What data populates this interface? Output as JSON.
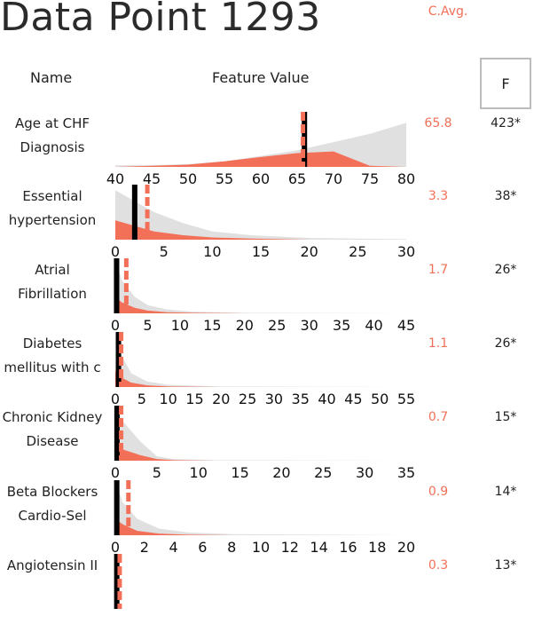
{
  "title": "Data Point 1293",
  "headers": {
    "name": "Name",
    "feature_value": "Feature Value",
    "cavg": "C.Avg.",
    "f": "F"
  },
  "colors": {
    "grey": "#e0e0e0",
    "accent": "#f37058",
    "marker": "#000000"
  },
  "chart_data": {
    "type": "area",
    "rows": [
      {
        "name_lines": [
          "Age at CHF",
          "Diagnosis"
        ],
        "cavg": "65.8",
        "f": "423*",
        "xlim": [
          40,
          80
        ],
        "ticks": [
          40,
          45,
          50,
          55,
          60,
          65,
          70,
          75,
          80
        ],
        "value": 66,
        "avg": 65.8,
        "grey_x": [
          40,
          45,
          50,
          55,
          60,
          65,
          70,
          75,
          80
        ],
        "grey_y": [
          0.03,
          0.03,
          0.05,
          0.1,
          0.2,
          0.3,
          0.45,
          0.6,
          0.8
        ],
        "red_x": [
          40,
          45,
          50,
          55,
          60,
          65,
          70,
          75,
          80
        ],
        "red_y": [
          0.0,
          0.02,
          0.04,
          0.1,
          0.18,
          0.25,
          0.28,
          0.02,
          0.0
        ]
      },
      {
        "name_lines": [
          "Essential",
          "hypertension"
        ],
        "cavg": "3.3",
        "f": "38*",
        "xlim": [
          0,
          30
        ],
        "ticks": [
          0,
          5,
          10,
          15,
          20,
          25,
          30
        ],
        "value": 2,
        "avg": 3.3,
        "grey_x": [
          0,
          2,
          4,
          7,
          10,
          14,
          20,
          30
        ],
        "grey_y": [
          0.9,
          0.7,
          0.5,
          0.3,
          0.15,
          0.08,
          0.03,
          0.01
        ],
        "red_x": [
          0,
          2,
          4,
          7,
          10,
          14,
          20,
          30
        ],
        "red_y": [
          0.35,
          0.25,
          0.15,
          0.08,
          0.04,
          0.02,
          0.0,
          0.0
        ]
      },
      {
        "name_lines": [
          "Atrial",
          "Fibrillation"
        ],
        "cavg": "1.7",
        "f": "26*",
        "xlim": [
          0,
          45
        ],
        "ticks": [
          0,
          5,
          10,
          15,
          20,
          25,
          30,
          35,
          40,
          45
        ],
        "value": 0.2,
        "avg": 1.7,
        "grey_x": [
          0,
          1,
          3,
          5,
          8,
          12,
          20,
          45
        ],
        "grey_y": [
          1.0,
          0.6,
          0.3,
          0.15,
          0.07,
          0.03,
          0.01,
          0.0
        ],
        "red_x": [
          0,
          1,
          3,
          5,
          8,
          12,
          20,
          45
        ],
        "red_y": [
          0.3,
          0.2,
          0.1,
          0.05,
          0.02,
          0.01,
          0.0,
          0.0
        ]
      },
      {
        "name_lines": [
          "Diabetes",
          "mellitus with c"
        ],
        "cavg": "1.1",
        "f": "26*",
        "xlim": [
          0,
          55
        ],
        "ticks": [
          0,
          5,
          10,
          15,
          20,
          25,
          30,
          35,
          40,
          45,
          50,
          55
        ],
        "value": 0.6,
        "avg": 1.1,
        "grey_x": [
          0,
          1,
          3,
          6,
          10,
          20,
          55
        ],
        "grey_y": [
          1.0,
          0.6,
          0.25,
          0.1,
          0.04,
          0.01,
          0.0
        ],
        "red_x": [
          0,
          1,
          3,
          6,
          10,
          20,
          55
        ],
        "red_y": [
          0.3,
          0.18,
          0.08,
          0.03,
          0.01,
          0.0,
          0.0
        ]
      },
      {
        "name_lines": [
          "Chronic Kidney",
          "Disease"
        ],
        "cavg": "0.7",
        "f": "15*",
        "xlim": [
          0,
          35
        ],
        "ticks": [
          0,
          5,
          10,
          15,
          20,
          25,
          30,
          35
        ],
        "value": 0.2,
        "avg": 0.7,
        "grey_x": [
          0,
          1,
          3,
          5,
          7,
          12,
          35
        ],
        "grey_y": [
          1.0,
          0.7,
          0.35,
          0.08,
          0.03,
          0.01,
          0.0
        ],
        "red_x": [
          0,
          1,
          3,
          5,
          7,
          12,
          35
        ],
        "red_y": [
          0.3,
          0.2,
          0.1,
          0.03,
          0.01,
          0.0,
          0.0
        ]
      },
      {
        "name_lines": [
          "Beta Blockers",
          "Cardio-Sel"
        ],
        "cavg": "0.9",
        "f": "14*",
        "xlim": [
          0,
          20
        ],
        "ticks": [
          0,
          2,
          4,
          6,
          8,
          10,
          12,
          14,
          16,
          18,
          20
        ],
        "value": 0.1,
        "avg": 0.9,
        "grey_x": [
          0,
          0.5,
          1.5,
          3,
          5,
          8,
          20
        ],
        "grey_y": [
          1.0,
          0.6,
          0.3,
          0.12,
          0.05,
          0.02,
          0.0
        ],
        "red_x": [
          0,
          0.5,
          1.5,
          3,
          5,
          8,
          20
        ],
        "red_y": [
          0.3,
          0.2,
          0.08,
          0.03,
          0.01,
          0.0,
          0.0
        ]
      },
      {
        "name_lines": [
          "Angiotensin II",
          ""
        ],
        "cavg": "0.3",
        "f": "13*",
        "xlim": [
          0,
          20
        ],
        "ticks": [],
        "value": 0.1,
        "avg": 0.3,
        "grey_x": [
          0,
          20
        ],
        "grey_y": [
          0.0,
          0.0
        ],
        "red_x": [
          0,
          20
        ],
        "red_y": [
          0.0,
          0.0
        ]
      }
    ]
  }
}
